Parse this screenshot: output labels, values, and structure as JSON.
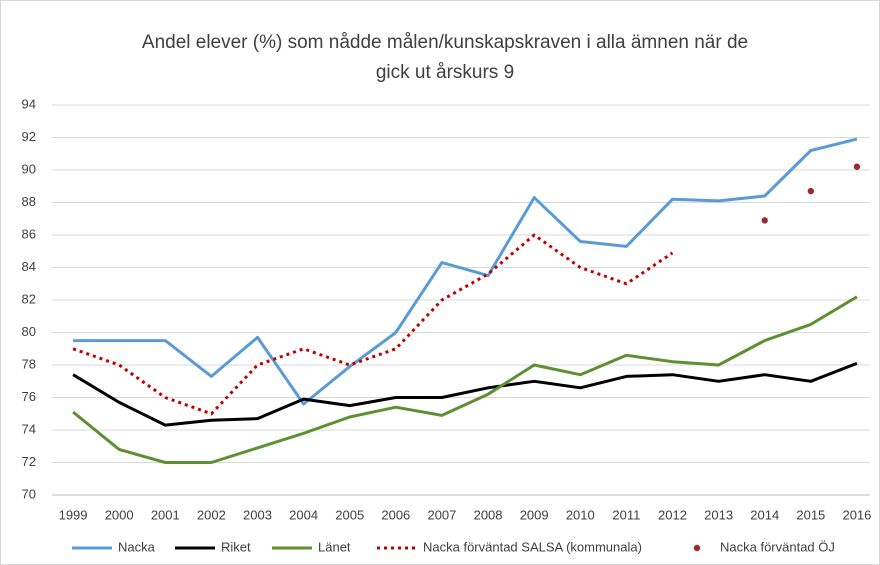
{
  "chart_data": {
    "type": "line",
    "title": [
      "Andel elever (%) som nådde målen/kunskapskraven i alla ämnen när de",
      "gick ut årskurs 9"
    ],
    "categories": [
      "1999",
      "2000",
      "2001",
      "2002",
      "2003",
      "2004",
      "2005",
      "2006",
      "2007",
      "2008",
      "2009",
      "2010",
      "2011",
      "2012",
      "2013",
      "2014",
      "2015",
      "2016"
    ],
    "series": [
      {
        "name": "Nacka",
        "color": "#5b9bd5",
        "style": "solid",
        "values": [
          79.5,
          79.5,
          79.5,
          77.3,
          79.7,
          75.6,
          77.9,
          80.0,
          84.3,
          83.5,
          88.3,
          85.6,
          85.3,
          88.2,
          88.1,
          88.4,
          91.2,
          91.9
        ]
      },
      {
        "name": "Riket",
        "color": "#000000",
        "style": "solid",
        "values": [
          77.4,
          75.7,
          74.3,
          74.6,
          74.7,
          75.9,
          75.5,
          76.0,
          76.0,
          76.6,
          77.0,
          76.6,
          77.3,
          77.4,
          77.0,
          77.4,
          77.0,
          78.1
        ]
      },
      {
        "name": "Länet",
        "color": "#5e8f32",
        "style": "solid",
        "values": [
          75.1,
          72.8,
          72.0,
          72.0,
          72.9,
          73.8,
          74.8,
          75.4,
          74.9,
          76.2,
          78.0,
          77.4,
          78.6,
          78.2,
          78.0,
          79.5,
          80.5,
          82.2
        ]
      },
      {
        "name": "Nacka förväntad SALSA (kommunala)",
        "color": "#c00000",
        "style": "dotted",
        "values": [
          79.0,
          78.0,
          76.0,
          75.0,
          78.0,
          79.0,
          78.0,
          79.0,
          82.0,
          83.6,
          86.0,
          84.0,
          83.0,
          84.9,
          null,
          null,
          null,
          null
        ]
      },
      {
        "name": "Nacka förväntad ÖJ",
        "color": "#9e2a2f",
        "style": "markers",
        "values": [
          null,
          null,
          null,
          null,
          null,
          null,
          null,
          null,
          null,
          null,
          null,
          null,
          null,
          null,
          null,
          86.9,
          88.7,
          90.2
        ]
      }
    ],
    "ylim": [
      70,
      94
    ],
    "yticks": [
      70,
      72,
      74,
      76,
      78,
      80,
      82,
      84,
      86,
      88,
      90,
      92,
      94
    ],
    "grid": true,
    "legend": "bottom"
  }
}
